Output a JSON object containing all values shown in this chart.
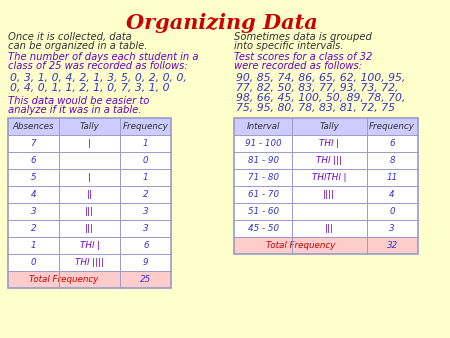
{
  "title": "Organizing Data",
  "title_color": "#cc0000",
  "bg_color": "#ffffcc",
  "text_color_blue": "#3333cc",
  "text_color_purple": "#6600cc",
  "text_color_red": "#cc0000",
  "text_color_dark": "#333333",
  "table_border_color": "#9999cc",
  "table_header_bg": "#ccccff",
  "table_footer_bg": "#ffcccc",
  "top_left_text1": "Once it is collected, data",
  "top_left_text2": "can be organized in a table.",
  "top_right_text1": "Sometimes data is grouped",
  "top_right_text2": "into specific intervals.",
  "table1_headers": [
    "Absences",
    "Tally",
    "Frequency"
  ],
  "table1_rows": [
    [
      "7",
      "|",
      "1"
    ],
    [
      "6",
      "",
      "0"
    ],
    [
      "5",
      "|",
      "1"
    ],
    [
      "4",
      "||",
      "2"
    ],
    [
      "3",
      "|||",
      "3"
    ],
    [
      "2",
      "|||",
      "3"
    ],
    [
      "1",
      "THl |",
      "6"
    ],
    [
      "0",
      "THl ||||",
      "9"
    ]
  ],
  "table1_footer": [
    "Total Frequency",
    "",
    "25"
  ],
  "table2_headers": [
    "Interval",
    "Tally",
    "Frequency"
  ],
  "table2_rows": [
    [
      "91 - 100",
      "THl |",
      "6"
    ],
    [
      "81 - 90",
      "THl |||",
      "8"
    ],
    [
      "71 - 80",
      "THlTHl |",
      "11"
    ],
    [
      "61 - 70",
      "||||",
      "4"
    ],
    [
      "51 - 60",
      "",
      "0"
    ],
    [
      "45 - 50",
      "|||",
      "3"
    ]
  ],
  "table2_footer": [
    "Total Frequency",
    "",
    "32"
  ]
}
